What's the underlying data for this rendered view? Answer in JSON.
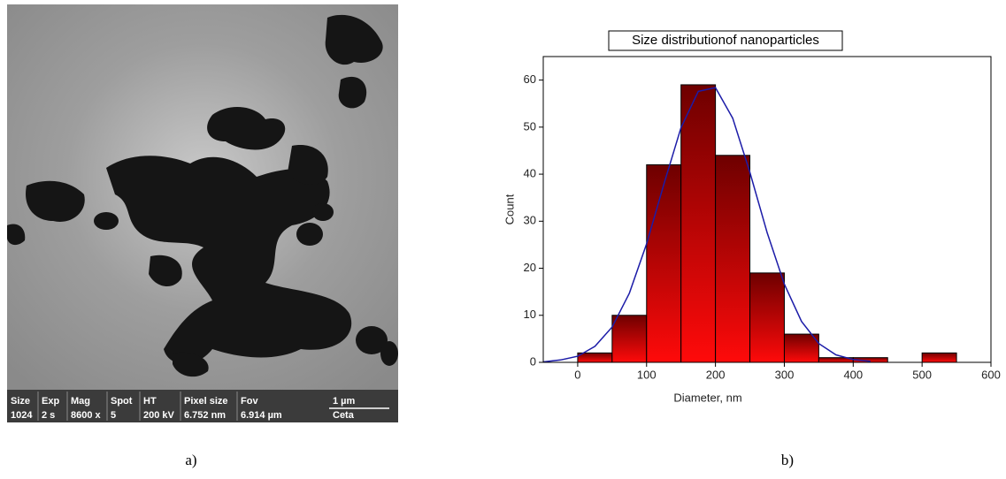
{
  "image_panel": {
    "info_bar": {
      "labels": [
        "Size",
        "Exp",
        "Mag",
        "Spot",
        "HT",
        "Pixel size",
        "Fov",
        "1 µm"
      ],
      "values": [
        "1024",
        "2 s",
        "8600 x",
        "5",
        "200 kV",
        "6.752 nm",
        "6.914 µm",
        "Ceta"
      ]
    },
    "caption": "a)"
  },
  "chart_data": {
    "type": "histogram",
    "title": "Size distributionof nanoparticles",
    "x_label": "Diameter, nm",
    "y_label": "Count",
    "bins": [
      0,
      50,
      100,
      150,
      200,
      250,
      300,
      350,
      400,
      450,
      500,
      550
    ],
    "values": [
      2,
      10,
      42,
      59,
      44,
      19,
      6,
      1,
      1,
      0,
      2
    ],
    "color": "#ff0a0a",
    "color_dark": "#6e0000",
    "fit": {
      "color": "#1c1ca8",
      "x": [
        -50,
        -25,
        0,
        25,
        50,
        75,
        100,
        125,
        150,
        175,
        200,
        225,
        250,
        275,
        300,
        325,
        350,
        375,
        400,
        425
      ],
      "values": [
        0.1,
        0.5,
        1.3,
        3.4,
        7.5,
        14.7,
        25.2,
        37.8,
        49.9,
        57.6,
        58.4,
        51.9,
        40.4,
        27.6,
        16.6,
        8.7,
        4.0,
        1.6,
        0.6,
        0.2
      ]
    },
    "xlim": [
      -50,
      600
    ],
    "ylim": [
      0,
      65
    ],
    "xticks": [
      0,
      100,
      200,
      300,
      400,
      500,
      600
    ],
    "yticks": [
      0,
      10,
      20,
      30,
      40,
      50,
      60
    ],
    "caption": "b)"
  }
}
